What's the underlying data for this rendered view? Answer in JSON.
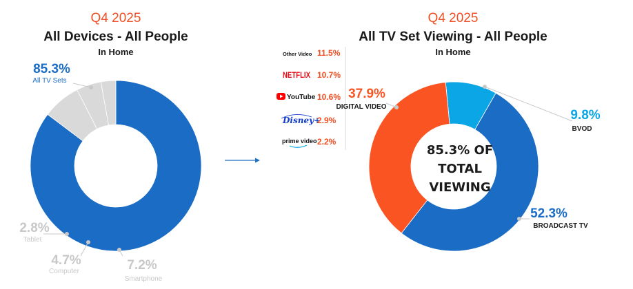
{
  "colors": {
    "accent_orange": "#f04e23",
    "title": "#1a1a1a",
    "tv_blue": "#1a6cc4",
    "digital_orange": "#fb5423",
    "bvod_cyan": "#0aa6e6",
    "gray_slice": "#d9d9d9",
    "gray_text": "#c8c8c8",
    "arrow_blue": "#1f6fc2"
  },
  "left_header": {
    "period": "Q4 2025",
    "title": "All Devices - All People",
    "subtitle": "In Home"
  },
  "right_header": {
    "period": "Q4 2025",
    "title": "All TV Set Viewing - All People",
    "subtitle": "In Home"
  },
  "center_label": [
    "85.3% OF",
    "TOTAL",
    "VIEWING"
  ],
  "icons": {
    "arrow": "right-arrow-icon",
    "netflix": "netflix-logo-icon",
    "youtube": "youtube-logo-icon",
    "disney": "disney-plus-logo-icon",
    "prime": "prime-video-logo-icon"
  },
  "digital_breakdown": [
    {
      "service": "Other Video",
      "logo": "other-video",
      "value": "11.5%"
    },
    {
      "service": "NETFLIX",
      "logo": "netflix",
      "value": "10.7%"
    },
    {
      "service": "YouTube",
      "logo": "youtube",
      "value": "10.6%"
    },
    {
      "service": "Disney+",
      "logo": "disney",
      "value": "2.9%"
    },
    {
      "service": "prime video",
      "logo": "prime",
      "value": "2.2%"
    }
  ],
  "chart_data": [
    {
      "type": "pie",
      "title": "All Devices - All People",
      "subtitle": "In Home",
      "period": "Q4 2025",
      "donut": true,
      "slices": [
        {
          "label": "All TV Sets",
          "value": 85.3,
          "display": "85.3%",
          "color": "#1a6cc4"
        },
        {
          "label": "Smartphone",
          "value": 7.2,
          "display": "7.2%",
          "color": "#d9d9d9"
        },
        {
          "label": "Computer",
          "value": 4.7,
          "display": "4.7%",
          "color": "#d9d9d9"
        },
        {
          "label": "Tablet",
          "value": 2.8,
          "display": "2.8%",
          "color": "#d9d9d9"
        }
      ]
    },
    {
      "type": "pie",
      "title": "All TV Set Viewing - All People",
      "subtitle": "In Home",
      "period": "Q4 2025",
      "donut": true,
      "slices": [
        {
          "label": "BVOD",
          "value": 9.8,
          "display": "9.8%",
          "color": "#0aa6e6"
        },
        {
          "label": "BROADCAST TV",
          "value": 52.3,
          "display": "52.3%",
          "color": "#1a6cc4"
        },
        {
          "label": "DIGITAL VIDEO",
          "value": 37.9,
          "display": "37.9%",
          "color": "#fb5423"
        }
      ]
    }
  ]
}
